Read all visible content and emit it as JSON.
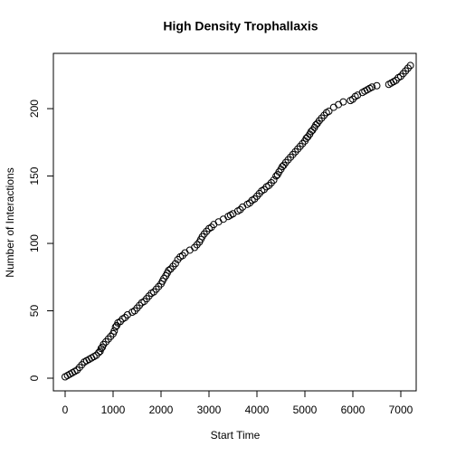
{
  "chart_data": {
    "type": "scatter",
    "title": "High Density Trophallaxis",
    "x_label": "Start Time",
    "y_label": "Number of Interactions",
    "xlim": [
      -245,
      7321
    ],
    "ylim": [
      -9.4,
      241
    ],
    "xticks": [
      0,
      1000,
      2000,
      3000,
      4000,
      5000,
      6000,
      7000
    ],
    "yticks": [
      0,
      50,
      100,
      150,
      200
    ],
    "grid": false,
    "color": "#000000",
    "series": [
      {
        "name": "Interactions",
        "x": [
          0,
          50,
          100,
          150,
          200,
          250,
          300,
          350,
          400,
          450,
          500,
          550,
          600,
          650,
          700,
          730,
          750,
          775,
          800,
          850,
          900,
          950,
          1000,
          1025,
          1050,
          1075,
          1100,
          1150,
          1200,
          1250,
          1300,
          1400,
          1450,
          1500,
          1550,
          1600,
          1650,
          1700,
          1750,
          1800,
          1850,
          1900,
          1950,
          2000,
          2030,
          2060,
          2100,
          2130,
          2160,
          2200,
          2250,
          2300,
          2350,
          2400,
          2450,
          2500,
          2600,
          2700,
          2750,
          2800,
          2830,
          2860,
          2900,
          2950,
          3000,
          3050,
          3100,
          3200,
          3300,
          3400,
          3450,
          3500,
          3600,
          3650,
          3700,
          3800,
          3850,
          3900,
          3950,
          4000,
          4050,
          4100,
          4150,
          4200,
          4250,
          4300,
          4350,
          4400,
          4430,
          4460,
          4500,
          4530,
          4560,
          4600,
          4650,
          4700,
          4750,
          4800,
          4850,
          4900,
          4950,
          5000,
          5030,
          5060,
          5100,
          5130,
          5160,
          5200,
          5230,
          5260,
          5300,
          5350,
          5400,
          5450,
          5500,
          5600,
          5700,
          5800,
          5950,
          6000,
          6050,
          6100,
          6200,
          6250,
          6300,
          6350,
          6400,
          6500,
          6750,
          6800,
          6850,
          6900,
          6950,
          7000,
          7050,
          7100,
          7150,
          7200
        ],
        "values": [
          1,
          2,
          3,
          4,
          5,
          6,
          8,
          10,
          12,
          13,
          14,
          15,
          16,
          17,
          19,
          20,
          22,
          23,
          25,
          27,
          29,
          31,
          33,
          35,
          38,
          39,
          41,
          42,
          44,
          45,
          47,
          49,
          50,
          52,
          54,
          56,
          57,
          59,
          61,
          63,
          64,
          66,
          68,
          70,
          72,
          74,
          76,
          78,
          80,
          81,
          83,
          85,
          88,
          90,
          91,
          93,
          95,
          97,
          99,
          101,
          103,
          105,
          107,
          109,
          111,
          112,
          114,
          116,
          118,
          120,
          121,
          122,
          124,
          125,
          127,
          129,
          130,
          132,
          133,
          135,
          137,
          139,
          140,
          142,
          143,
          145,
          147,
          150,
          151,
          153,
          155,
          157,
          158,
          160,
          162,
          164,
          166,
          168,
          170,
          172,
          174,
          176,
          178,
          179,
          181,
          183,
          184,
          186,
          188,
          189,
          191,
          193,
          195,
          197,
          198,
          201,
          203,
          205,
          206,
          207,
          209,
          210,
          212,
          213,
          214,
          215,
          216,
          217,
          218,
          219,
          220,
          221,
          223,
          224,
          226,
          228,
          230,
          232
        ]
      }
    ]
  }
}
